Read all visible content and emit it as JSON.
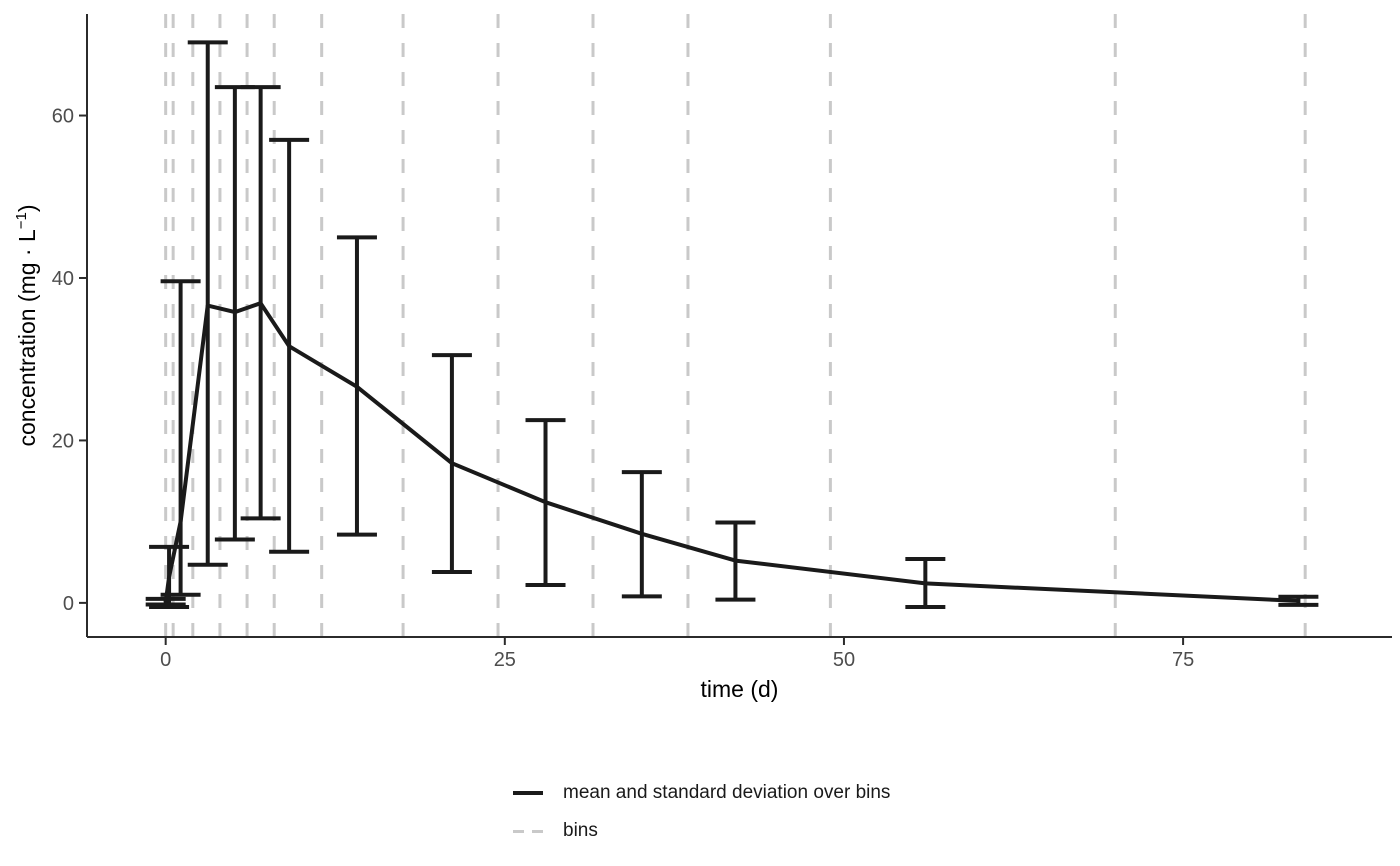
{
  "chart_data": {
    "type": "line",
    "title": "",
    "xlabel": "time (d)",
    "ylabel": "concentration (mg · L⁻¹)",
    "ylabel_parts": {
      "prefix": "concentration (mg · L",
      "sup": "−1",
      "suffix": ")"
    },
    "x_ticks": [
      0,
      25,
      50,
      75
    ],
    "y_ticks": [
      0,
      20,
      40,
      60
    ],
    "x_range": [
      -5.8,
      90.4
    ],
    "y_range": [
      -4.2,
      72.5
    ],
    "grid": "off",
    "legend_position": "bottom",
    "series": [
      {
        "name": "mean and standard deviation over bins",
        "points": [
          {
            "t": 0,
            "mean": 0.1,
            "sd_low": -0.2,
            "sd_high": 0.5
          },
          {
            "t": 0.25,
            "mean": 3.2,
            "sd_low": -0.5,
            "sd_high": 6.9
          },
          {
            "t": 1.1,
            "mean": 10.0,
            "sd_low": 1.0,
            "sd_high": 39.6
          },
          {
            "t": 3.1,
            "mean": 36.6,
            "sd_low": 4.7,
            "sd_high": 69.0
          },
          {
            "t": 5.1,
            "mean": 35.8,
            "sd_low": 7.8,
            "sd_high": 63.5
          },
          {
            "t": 7.0,
            "mean": 36.9,
            "sd_low": 10.4,
            "sd_high": 63.5
          },
          {
            "t": 9.1,
            "mean": 31.6,
            "sd_low": 6.3,
            "sd_high": 57.0
          },
          {
            "t": 14.1,
            "mean": 26.6,
            "sd_low": 8.4,
            "sd_high": 45.0
          },
          {
            "t": 21.1,
            "mean": 17.2,
            "sd_low": 3.8,
            "sd_high": 30.5
          },
          {
            "t": 28.0,
            "mean": 12.4,
            "sd_low": 2.2,
            "sd_high": 22.5
          },
          {
            "t": 35.1,
            "mean": 8.5,
            "sd_low": 0.8,
            "sd_high": 16.1
          },
          {
            "t": 42.0,
            "mean": 5.2,
            "sd_low": 0.4,
            "sd_high": 9.9
          },
          {
            "t": 56.0,
            "mean": 2.4,
            "sd_low": -0.5,
            "sd_high": 5.4
          },
          {
            "t": 83.5,
            "mean": 0.25,
            "sd_low": -0.25,
            "sd_high": 0.75
          }
        ]
      }
    ],
    "bins": [
      0,
      0.55,
      2,
      4,
      6,
      8,
      11.5,
      17.5,
      24.5,
      31.5,
      38.5,
      49,
      70,
      84
    ],
    "colors": {
      "mean_line": "#1a1a1a",
      "error_bar": "#1a1a1a",
      "bin_line": "#c9c9c9",
      "axis_line": "#2b2b2b",
      "tick_label": "#4d4d4d",
      "axis_title": "#000000",
      "background": "#ffffff"
    }
  },
  "legend": {
    "items": [
      {
        "label": "mean and standard deviation over bins",
        "style": "solid-black-line"
      },
      {
        "label": "bins",
        "style": "dashed-gray-line"
      }
    ]
  }
}
